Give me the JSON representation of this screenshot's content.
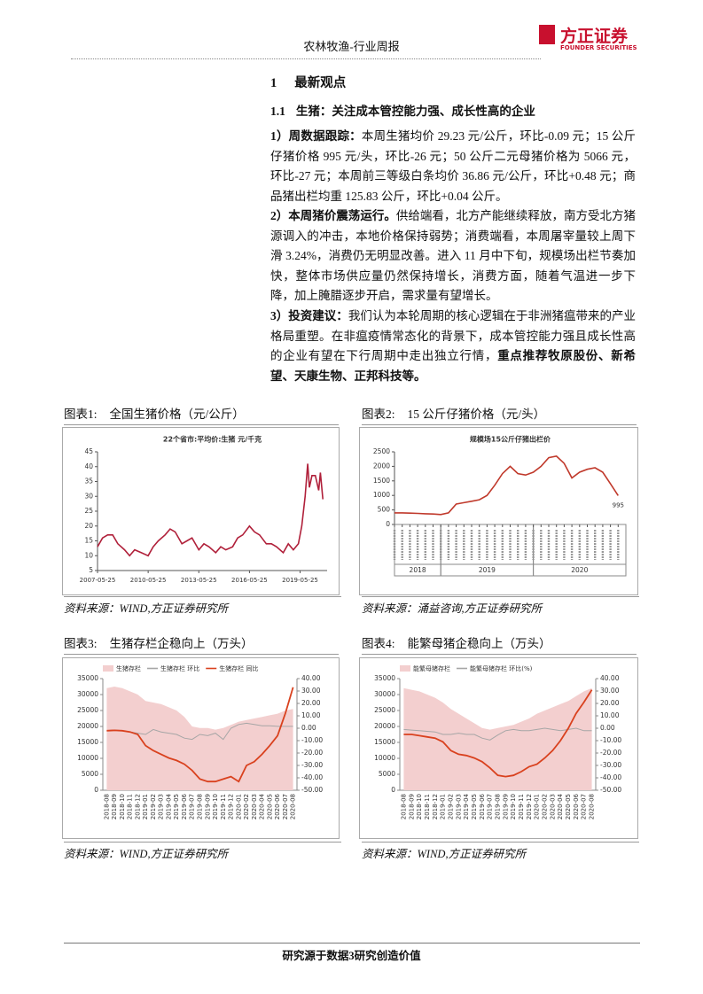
{
  "header": {
    "title": "农林牧渔-行业周报",
    "logo_cn": "方正证券",
    "logo_en": "FOUNDER SECURITIES"
  },
  "section": {
    "number": "1",
    "title": "最新观点"
  },
  "subsection": {
    "number": "1.1",
    "title": "生猪：关注成本管控能力强、成长性高的企业"
  },
  "paragraphs": [
    {
      "lead": "1）周数据跟踪：",
      "text": "本周生猪均价 29.23 元/公斤，环比-0.09 元；15 公斤仔猪价格 995 元/头，环比-26 元；50 公斤二元母猪价格为 5066 元，环比-27 元；本周前三等级白条均价 36.86 元/公斤，环比+0.48 元；商品猪出栏均重 125.83 公斤，环比+0.04 公斤。"
    },
    {
      "lead": "2）本周猪价震荡运行。",
      "text": "供给端看，北方产能继续释放，南方受北方猪源调入的冲击，本地价格保持弱势；消费端看，本周屠宰量较上周下滑 3.24%，消费仍无明显改善。进入 11 月中下旬，规模场出栏节奏加快，整体市场供应量仍然保持增长，消费方面，随着气温进一步下降，加上腌腊逐步开启，需求量有望增长。"
    },
    {
      "lead": "3）投资建议：",
      "text": "我们认为本轮周期的核心逻辑在于非洲猪瘟带来的产业格局重塑。在非瘟疫情常态化的背景下，成本管控能力强且成长性高的企业有望在下行周期中走出独立行情，",
      "emphasis": "重点推荐牧原股份、新希望、天康生物、正邦科技等。"
    }
  ],
  "figures": [
    {
      "label": "图表1:",
      "caption": "全国生猪价格（元/公斤）",
      "source": "资料来源：WIND,方正证券研究所"
    },
    {
      "label": "图表2:",
      "caption": "15 公斤仔猪价格（元/头）",
      "source": "资料来源：涌益咨询,方正证券研究所"
    },
    {
      "label": "图表3:",
      "caption": "生猪存栏企稳向上（万头）",
      "source": "资料来源：WIND,方正证券研究所"
    },
    {
      "label": "图表4:",
      "caption": "能繁母猪企稳向上（万头）",
      "source": "资料来源：WIND,方正证券研究所"
    }
  ],
  "chart_data": [
    {
      "type": "line",
      "title": "22个省市:平均价:生猪 元/千克",
      "color": "#b0203a",
      "x": [
        2007.4,
        2007.7,
        2008.0,
        2008.3,
        2008.6,
        2009.0,
        2009.3,
        2009.6,
        2010.0,
        2010.4,
        2010.7,
        2011.0,
        2011.4,
        2011.7,
        2012.0,
        2012.4,
        2012.7,
        2013.0,
        2013.4,
        2013.7,
        2014.0,
        2014.4,
        2014.7,
        2015.0,
        2015.4,
        2015.7,
        2016.0,
        2016.4,
        2016.7,
        2017.0,
        2017.4,
        2017.7,
        2018.0,
        2018.4,
        2018.7,
        2019.0,
        2019.3,
        2019.5,
        2019.7,
        2019.85,
        2019.95,
        2020.1,
        2020.3,
        2020.5,
        2020.6,
        2020.75
      ],
      "values": [
        13,
        16,
        17,
        17,
        14,
        12,
        10,
        12,
        11,
        10,
        13,
        15,
        17,
        19,
        18,
        14,
        15,
        16,
        12,
        14,
        13,
        11,
        13,
        12,
        13,
        16,
        17,
        20,
        18,
        17,
        14,
        14,
        13,
        11,
        14,
        12,
        14,
        20,
        30,
        41,
        33,
        37,
        37,
        32,
        38,
        29
      ],
      "xlim": [
        2007.4,
        2021.0
      ],
      "xticks": [
        {
          "value": 2007.4,
          "label": "2007-05-25"
        },
        {
          "value": 2010.4,
          "label": "2010-05-25"
        },
        {
          "value": 2013.4,
          "label": "2013-05-25"
        },
        {
          "value": 2016.4,
          "label": "2016-05-25"
        },
        {
          "value": 2019.4,
          "label": "2019-05-25"
        }
      ],
      "ylim": [
        5,
        45
      ],
      "yticks": [
        5,
        10,
        15,
        20,
        25,
        30,
        35,
        40,
        45
      ]
    },
    {
      "type": "line",
      "title": "规模场15公斤仔猪出栏价",
      "color": "#c0392b",
      "x": [
        0,
        1,
        2,
        3,
        4,
        5,
        6,
        7,
        8,
        9,
        10,
        11,
        12,
        13,
        14,
        15,
        16,
        17,
        18,
        19,
        20,
        21,
        22,
        23,
        24,
        25,
        26,
        27,
        28,
        29
      ],
      "values": [
        400,
        400,
        390,
        380,
        370,
        360,
        340,
        400,
        700,
        750,
        800,
        850,
        1000,
        1350,
        1750,
        2000,
        1750,
        1700,
        1800,
        2000,
        2300,
        2350,
        2100,
        1600,
        1800,
        1900,
        1950,
        1800,
        1400,
        995
      ],
      "xlim": [
        0,
        30
      ],
      "ylim": [
        0,
        2500
      ],
      "yticks": [
        0,
        500,
        1000,
        1500,
        2000,
        2500
      ],
      "xgroups": [
        {
          "label": "2018",
          "range": [
            0,
            6
          ]
        },
        {
          "label": "2019",
          "range": [
            6,
            18
          ]
        },
        {
          "label": "2020",
          "range": [
            18,
            30
          ]
        }
      ]
    },
    {
      "type": "combo",
      "categories": [
        "2018-08",
        "2018-09",
        "2018-10",
        "2018-11",
        "2018-12",
        "2019-01",
        "2019-02",
        "2019-03",
        "2019-04",
        "2019-05",
        "2019-06",
        "2019-07",
        "2019-08",
        "2019-09",
        "2019-10",
        "2019-11",
        "2019-12",
        "2020-01",
        "2020-02",
        "2020-03",
        "2020-04",
        "2020-05",
        "2020-06",
        "2020-07",
        "2020-08"
      ],
      "series": [
        {
          "name": "生猪存栏",
          "type": "area",
          "color": "#f3cfcf",
          "values": [
            32000,
            32500,
            32000,
            31000,
            30000,
            28000,
            27500,
            27000,
            26000,
            25000,
            23000,
            20000,
            19500,
            19500,
            19000,
            19500,
            20500,
            21500,
            22000,
            22500,
            23000,
            23500,
            24000,
            25000,
            25500
          ]
        },
        {
          "name": "生猪存栏 环比",
          "type": "line",
          "axis": "y2",
          "color": "#a6a6a6",
          "values": [
            -2,
            -1.5,
            -2,
            -3,
            -4,
            -5,
            -1,
            -3,
            -4,
            -5,
            -8,
            -9,
            -5,
            -6,
            -4,
            -9,
            0,
            3,
            4,
            3,
            2,
            2,
            1.5,
            1.5,
            1.5
          ]
        },
        {
          "name": "生猪存栏 同比",
          "type": "line",
          "axis": "y2",
          "color": "#d9411e",
          "values": [
            -2,
            -1.7,
            -2,
            -3,
            -5,
            -14,
            -18,
            -21,
            -24,
            -26,
            -29,
            -34,
            -41,
            -43,
            -43,
            -41,
            -39,
            -43,
            -30,
            -27,
            -21,
            -14,
            -6,
            12,
            33
          ]
        }
      ],
      "ylim": [
        0,
        35000
      ],
      "yticks": [
        0,
        5000,
        10000,
        15000,
        20000,
        25000,
        30000,
        35000
      ],
      "y2lim": [
        -50,
        40
      ],
      "y2ticks": [
        {
          "value": -50,
          "label": "-50.00"
        },
        {
          "value": -40,
          "label": "-40.00"
        },
        {
          "value": -30,
          "label": "-30.00"
        },
        {
          "value": -20,
          "label": "-20.00"
        },
        {
          "value": -10,
          "label": "-10.00"
        },
        {
          "value": 0,
          "label": "0.00"
        },
        {
          "value": 10,
          "label": "10.00"
        },
        {
          "value": 20,
          "label": "20.00"
        },
        {
          "value": 30,
          "label": "30.00"
        },
        {
          "value": 40,
          "label": "40.00"
        }
      ]
    },
    {
      "type": "combo",
      "categories": [
        "2018-08",
        "2018-09",
        "2018-10",
        "2018-11",
        "2018-12",
        "2019-01",
        "2019-02",
        "2019-03",
        "2019-04",
        "2019-05",
        "2019-06",
        "2019-07",
        "2019-08",
        "2019-09",
        "2019-10",
        "2019-11",
        "2019-12",
        "2020-01",
        "2020-02",
        "2020-03",
        "2020-04",
        "2020-05",
        "2020-06",
        "2020-07",
        "2020-08"
      ],
      "series": [
        {
          "name": "能繁母猪存栏",
          "type": "area",
          "color": "#f3cfcf",
          "values": [
            32000,
            31500,
            31000,
            30000,
            29000,
            27500,
            25500,
            24000,
            22500,
            21000,
            19500,
            19000,
            19500,
            20000,
            20500,
            21500,
            22500,
            24000,
            25000,
            26000,
            27000,
            28000,
            29500,
            31000,
            32000
          ]
        },
        {
          "name": "能繁母猪存栏 环比(%)",
          "type": "line",
          "axis": "y2",
          "color": "#a6a6a6",
          "values": [
            -1,
            -1.5,
            -2,
            -2.5,
            -3,
            -5,
            -5,
            -4,
            -5,
            -5,
            -8,
            -9.5,
            -5.5,
            -2,
            -1,
            -2,
            -2,
            -1,
            0,
            -1,
            -2,
            -1,
            0,
            -2,
            -2
          ]
        },
        {
          "type": "line",
          "axis": "y2",
          "color": "#d9411e",
          "values": [
            -5,
            -5,
            -6,
            -7,
            -8,
            -11,
            -18,
            -21,
            -22,
            -24,
            -27,
            -32,
            -38,
            -39,
            -38,
            -35,
            -31,
            -29,
            -24,
            -18,
            -10,
            0,
            12,
            21,
            31
          ]
        }
      ],
      "ylim": [
        0,
        35000
      ],
      "yticks": [
        0,
        5000,
        10000,
        15000,
        20000,
        25000,
        30000,
        35000
      ],
      "y2lim": [
        -50,
        40
      ],
      "y2ticks": [
        {
          "value": -50,
          "label": "-50.00"
        },
        {
          "value": -40,
          "label": "-40.00"
        },
        {
          "value": -30,
          "label": "-30.00"
        },
        {
          "value": -20,
          "label": "-20.00"
        },
        {
          "value": -10,
          "label": "-10.00"
        },
        {
          "value": 0,
          "label": "0.00"
        },
        {
          "value": 10,
          "label": "10.00"
        },
        {
          "value": 20,
          "label": "20.00"
        },
        {
          "value": 30,
          "label": "30.00"
        },
        {
          "value": 40,
          "label": "40.00"
        }
      ]
    }
  ],
  "footer": {
    "text": "研究源于数据3研究创造价值"
  }
}
